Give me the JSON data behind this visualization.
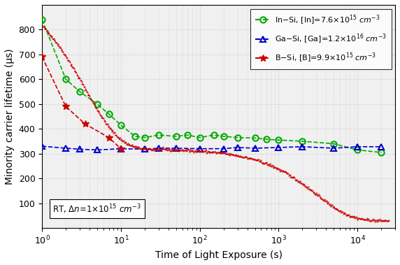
{
  "xlabel": "Time of Light Exposure (s)",
  "ylabel": "Minority carrier lifetime (μs)",
  "xlim": [
    1,
    30000
  ],
  "ylim": [
    0,
    900
  ],
  "yticks": [
    100,
    200,
    300,
    400,
    500,
    600,
    700,
    800
  ],
  "background_color": "#f0f0f0",
  "In_x": [
    1.0,
    2.0,
    3.0,
    5.0,
    7.0,
    10,
    15,
    20,
    30,
    50,
    70,
    100,
    150,
    200,
    300,
    500,
    700,
    1000,
    2000,
    5000,
    10000,
    20000
  ],
  "In_y": [
    840,
    600,
    550,
    500,
    460,
    415,
    370,
    365,
    375,
    370,
    375,
    365,
    375,
    370,
    365,
    363,
    358,
    355,
    350,
    340,
    315,
    305
  ],
  "Ga_x": [
    1.0,
    2.0,
    3.0,
    5.0,
    10,
    20,
    30,
    50,
    100,
    200,
    300,
    500,
    1000,
    2000,
    5000,
    10000,
    20000
  ],
  "Ga_y": [
    330,
    322,
    318,
    315,
    320,
    318,
    322,
    322,
    320,
    320,
    325,
    322,
    325,
    328,
    322,
    328,
    328
  ],
  "B_sparse_x": [
    1.0,
    2.0,
    3.5,
    7.0,
    10.0
  ],
  "B_sparse_y": [
    690,
    490,
    420,
    365,
    320
  ],
  "color_In": "#00aa00",
  "color_Ga": "#0000cc",
  "color_B": "#cc0000",
  "grid_color": "#c8c8c8",
  "grid_linestyle": "dotted"
}
